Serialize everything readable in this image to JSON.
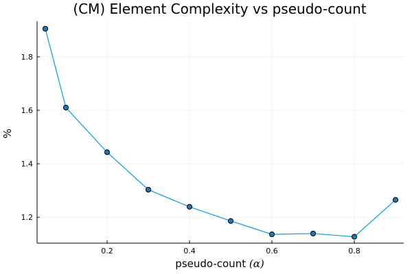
{
  "chart_data": {
    "type": "line",
    "title": "(CM) Element Complexity vs pseudo-count",
    "xlabel_text": "pseudo-count ",
    "xlabel_symbol": "(α)",
    "ylabel": "%",
    "x": [
      0.05,
      0.1,
      0.2,
      0.3,
      0.4,
      0.5,
      0.6,
      0.7,
      0.8,
      0.9
    ],
    "y": [
      1.905,
      1.61,
      1.443,
      1.303,
      1.239,
      1.186,
      1.136,
      1.139,
      1.127,
      1.265
    ],
    "xlim": [
      0.03,
      0.92
    ],
    "ylim": [
      1.103,
      1.933
    ],
    "xticks": [
      0.2,
      0.4,
      0.6,
      0.8
    ],
    "xtick_labels": [
      "0.2",
      "0.4",
      "0.6",
      "0.8"
    ],
    "yticks": [
      1.2,
      1.4,
      1.6,
      1.8
    ],
    "ytick_labels": [
      "1.2",
      "1.4",
      "1.6",
      "1.8"
    ],
    "grid": true,
    "legend": "none",
    "line_color": "#009AFA",
    "marker_color": "#1F77B4",
    "marker_edge_color": "#000000"
  }
}
